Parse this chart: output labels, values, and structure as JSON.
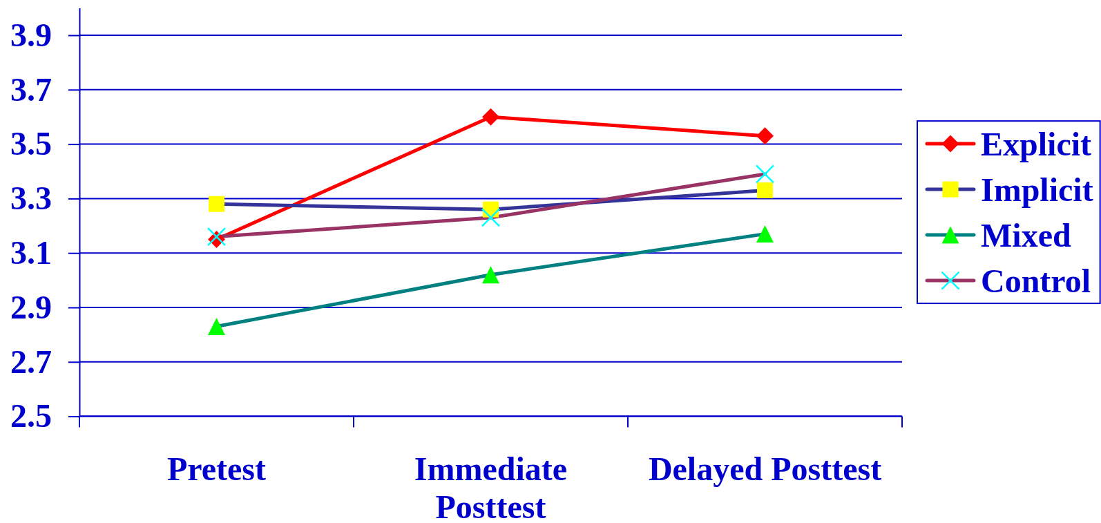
{
  "chart_data": {
    "type": "line",
    "categories": [
      "Pretest",
      "Immediate Posttest",
      "Delayed Posttest"
    ],
    "series": [
      {
        "name": "Explicit",
        "color": "#ff0000",
        "colors": [
          "#ff0000",
          "#ff0000",
          "#ff0000"
        ],
        "marker": "diamond",
        "values": [
          3.15,
          3.6,
          3.53
        ]
      },
      {
        "name": "Implicit",
        "color": "#333399",
        "colors": [
          "#ffff00",
          "#ffff00",
          "#ffff00"
        ],
        "marker": "square",
        "values": [
          3.28,
          3.26,
          3.33
        ]
      },
      {
        "name": "Mixed",
        "color": "#008080",
        "colors": [
          "#00ff00",
          "#00ff00",
          "#00ff00"
        ],
        "marker": "triangle",
        "values": [
          2.83,
          3.02,
          3.17
        ]
      },
      {
        "name": "Control",
        "color": "#993366",
        "colors": [
          "#00ffff",
          "#00ffff",
          "#00ffff"
        ],
        "marker": "cross",
        "values": [
          3.16,
          3.23,
          3.39
        ]
      }
    ],
    "ylim": [
      2.5,
      4.0
    ],
    "yticks": [
      2.5,
      2.7,
      2.9,
      3.1,
      3.3,
      3.5,
      3.7,
      3.9
    ],
    "grid": "y",
    "legend": "right",
    "line_style": "solid"
  }
}
